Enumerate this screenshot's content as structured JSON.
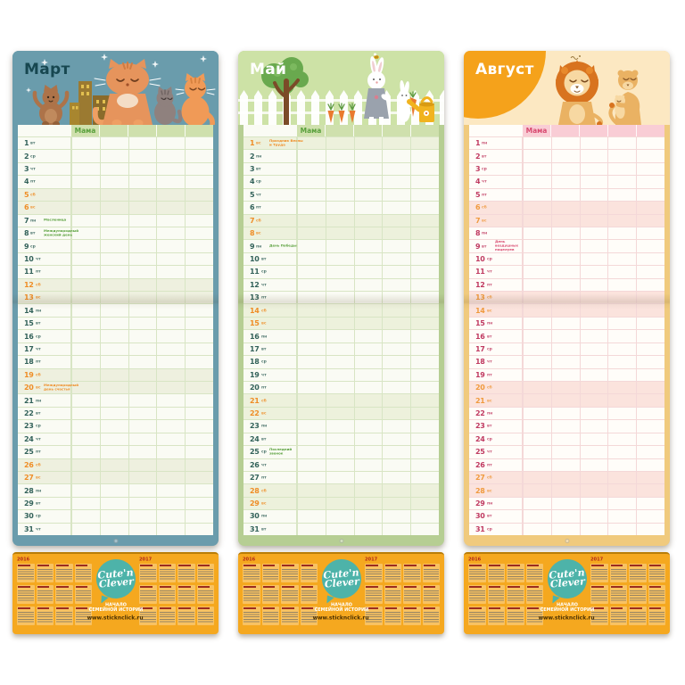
{
  "page": {
    "background": "#ffffff"
  },
  "panels": [
    {
      "id": "march",
      "month_label": "Март",
      "mama_label": "Мама",
      "theme": {
        "frame": "#6a9cac",
        "header": "#6a9cac",
        "title": "#174750",
        "band": "#cfe0ad",
        "mama": "#59a03c",
        "line": "#d8e5c4",
        "gridbg": "#fafbf4",
        "num": "#33625a",
        "wk": "#ef8d26",
        "wkbg": "#eef0df",
        "note": "#59a03c"
      },
      "days": [
        {
          "n": 1,
          "d": "вт"
        },
        {
          "n": 2,
          "d": "ср"
        },
        {
          "n": 3,
          "d": "чт"
        },
        {
          "n": 4,
          "d": "пт"
        },
        {
          "n": 5,
          "d": "сб"
        },
        {
          "n": 6,
          "d": "вс"
        },
        {
          "n": 7,
          "d": "пн",
          "note": "Масленица"
        },
        {
          "n": 8,
          "d": "вт",
          "note": "Международный женский день"
        },
        {
          "n": 9,
          "d": "ср"
        },
        {
          "n": 10,
          "d": "чт"
        },
        {
          "n": 11,
          "d": "пт"
        },
        {
          "n": 12,
          "d": "сб"
        },
        {
          "n": 13,
          "d": "вс"
        },
        {
          "n": 14,
          "d": "пн"
        },
        {
          "n": 15,
          "d": "вт"
        },
        {
          "n": 16,
          "d": "ср"
        },
        {
          "n": 17,
          "d": "чт"
        },
        {
          "n": 18,
          "d": "пт"
        },
        {
          "n": 19,
          "d": "сб"
        },
        {
          "n": 20,
          "d": "вс",
          "note": "Международный день счастья"
        },
        {
          "n": 21,
          "d": "пн"
        },
        {
          "n": 22,
          "d": "вт"
        },
        {
          "n": 23,
          "d": "ср"
        },
        {
          "n": 24,
          "d": "чт"
        },
        {
          "n": 25,
          "d": "пт"
        },
        {
          "n": 26,
          "d": "сб"
        },
        {
          "n": 27,
          "d": "вс"
        },
        {
          "n": 28,
          "d": "пн"
        },
        {
          "n": 29,
          "d": "вт"
        },
        {
          "n": 30,
          "d": "ср"
        },
        {
          "n": 31,
          "d": "чт"
        }
      ]
    },
    {
      "id": "may",
      "month_label": "Май",
      "mama_label": "Мама",
      "theme": {
        "frame": "#b6ce93",
        "header": "#cde2a6",
        "title": "#ffffff",
        "band": "#cfe0ad",
        "mama": "#59a03c",
        "line": "#d8e5c4",
        "gridbg": "#fafbf4",
        "num": "#33625a",
        "wk": "#ef8d26",
        "wkbg": "#edf1dc",
        "note": "#59a03c"
      },
      "days": [
        {
          "n": 1,
          "d": "вс",
          "note": "Праздник Весны и Труда"
        },
        {
          "n": 2,
          "d": "пн"
        },
        {
          "n": 3,
          "d": "вт"
        },
        {
          "n": 4,
          "d": "ср"
        },
        {
          "n": 5,
          "d": "чт"
        },
        {
          "n": 6,
          "d": "пт"
        },
        {
          "n": 7,
          "d": "сб"
        },
        {
          "n": 8,
          "d": "вс"
        },
        {
          "n": 9,
          "d": "пн",
          "note": "День Победы"
        },
        {
          "n": 10,
          "d": "вт"
        },
        {
          "n": 11,
          "d": "ср"
        },
        {
          "n": 12,
          "d": "чт"
        },
        {
          "n": 13,
          "d": "пт"
        },
        {
          "n": 14,
          "d": "сб"
        },
        {
          "n": 15,
          "d": "вс"
        },
        {
          "n": 16,
          "d": "пн"
        },
        {
          "n": 17,
          "d": "вт"
        },
        {
          "n": 18,
          "d": "ср"
        },
        {
          "n": 19,
          "d": "чт"
        },
        {
          "n": 20,
          "d": "пт"
        },
        {
          "n": 21,
          "d": "сб"
        },
        {
          "n": 22,
          "d": "вс"
        },
        {
          "n": 23,
          "d": "пн"
        },
        {
          "n": 24,
          "d": "вт"
        },
        {
          "n": 25,
          "d": "ср",
          "note": "Последний звонок"
        },
        {
          "n": 26,
          "d": "чт"
        },
        {
          "n": 27,
          "d": "пт"
        },
        {
          "n": 28,
          "d": "сб"
        },
        {
          "n": 29,
          "d": "вс"
        },
        {
          "n": 30,
          "d": "пн"
        },
        {
          "n": 31,
          "d": "вт"
        }
      ]
    },
    {
      "id": "august",
      "month_label": "Август",
      "mama_label": "Мама",
      "theme": {
        "frame": "#f0ca7d",
        "header": "#fce8c2",
        "title": "#ffffff",
        "band": "#f9cdd5",
        "mama": "#d84a70",
        "line": "#f4d8d8",
        "gridbg": "#fffdf9",
        "num": "#c03a61",
        "wk": "#f09a3e",
        "wkbg": "#fbe3dd",
        "note": "#d84a70"
      },
      "days": [
        {
          "n": 1,
          "d": "пн"
        },
        {
          "n": 2,
          "d": "вт"
        },
        {
          "n": 3,
          "d": "ср"
        },
        {
          "n": 4,
          "d": "чт"
        },
        {
          "n": 5,
          "d": "пт"
        },
        {
          "n": 6,
          "d": "сб"
        },
        {
          "n": 7,
          "d": "вс"
        },
        {
          "n": 8,
          "d": "пн"
        },
        {
          "n": 9,
          "d": "вт",
          "note": "День воздушных поцелуев"
        },
        {
          "n": 10,
          "d": "ср"
        },
        {
          "n": 11,
          "d": "чт"
        },
        {
          "n": 12,
          "d": "пт"
        },
        {
          "n": 13,
          "d": "сб"
        },
        {
          "n": 14,
          "d": "вс"
        },
        {
          "n": 15,
          "d": "пн"
        },
        {
          "n": 16,
          "d": "вт"
        },
        {
          "n": 17,
          "d": "ср"
        },
        {
          "n": 18,
          "d": "чт"
        },
        {
          "n": 19,
          "d": "пт"
        },
        {
          "n": 20,
          "d": "сб"
        },
        {
          "n": 21,
          "d": "вс"
        },
        {
          "n": 22,
          "d": "пн"
        },
        {
          "n": 23,
          "d": "вт"
        },
        {
          "n": 24,
          "d": "ср"
        },
        {
          "n": 25,
          "d": "чт"
        },
        {
          "n": 26,
          "d": "пт"
        },
        {
          "n": 27,
          "d": "сб"
        },
        {
          "n": 28,
          "d": "вс"
        },
        {
          "n": 29,
          "d": "пн"
        },
        {
          "n": 30,
          "d": "вт"
        },
        {
          "n": 31,
          "d": "ср"
        }
      ]
    }
  ],
  "footer": {
    "year_left": "2016",
    "year_right": "2017",
    "logo_line1": "Cute'n",
    "logo_line2": "Clever",
    "tagline_line1": "НАЧАЛО",
    "tagline_line2": "СЕМЕЙНОЙ ИСТОРИИ",
    "url": "www.sticknclick.ru",
    "background": "#f5a81f",
    "logo_color": "#4db3a9",
    "year_color": "#b3271a",
    "url_color": "#4a3000"
  }
}
